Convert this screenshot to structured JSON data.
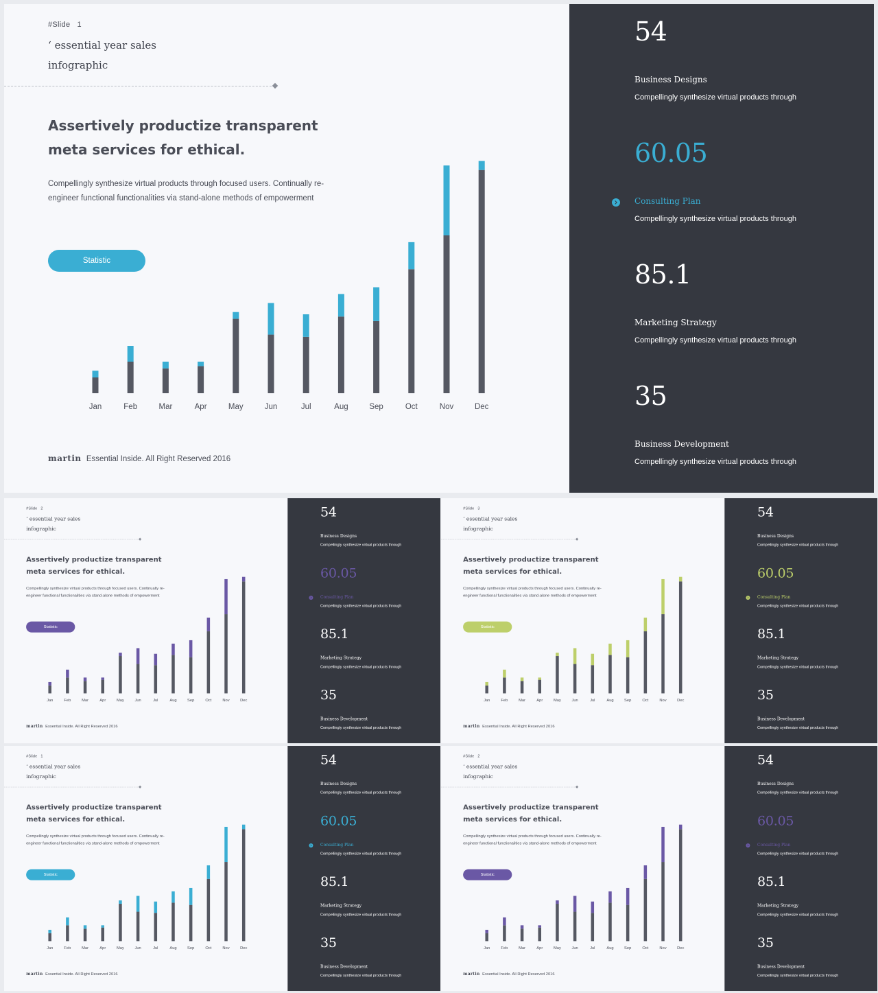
{
  "slides": [
    {
      "slide_label": "#Slide",
      "slide_number": "1",
      "accent": "#3aaed3",
      "featured": true
    },
    {
      "slide_label": "#Slide",
      "slide_number": "2",
      "accent": "#6a58a5",
      "featured": false
    },
    {
      "slide_label": "#Slide",
      "slide_number": "3",
      "accent": "#bdcf6a",
      "featured": false
    },
    {
      "slide_label": "#Slide",
      "slide_number": "1",
      "accent": "#3aaed3",
      "featured": false
    },
    {
      "slide_label": "#Slide",
      "slide_number": "2",
      "accent": "#6a58a5",
      "featured": false
    }
  ],
  "content": {
    "title_mark": "‘",
    "title": "essential year sales infographic",
    "headline": "Assertively productize transparent meta services for ethical.",
    "body": "Compellingly synthesize virtual products through focused users. Continually re-engineer functional functionalities via stand-alone methods of empowerment",
    "button_label": "Statistic",
    "footer_brand": "martin",
    "footer_text": "Essential Inside. All Right Reserved 2016"
  },
  "stats": [
    {
      "value": "54",
      "label": "Business Designs",
      "desc": "Compellingly synthesize virtual products through",
      "highlight": false
    },
    {
      "value": "60.05",
      "label": "Consulting Plan",
      "desc": "Compellingly synthesize virtual products through",
      "highlight": true
    },
    {
      "value": "85.1",
      "label": "Marketing Strategy",
      "desc": "Compellingly synthesize virtual products through",
      "highlight": false
    },
    {
      "value": "35",
      "label": "Business Development",
      "desc": "Compellingly synthesize virtual products through",
      "highlight": false
    }
  ],
  "chart_data": {
    "type": "bar",
    "stacked": true,
    "categories": [
      "Jan",
      "Feb",
      "Mar",
      "Apr",
      "May",
      "Jun",
      "Jul",
      "Aug",
      "Sep",
      "Oct",
      "Nov",
      "Dec"
    ],
    "series": [
      {
        "values": [
          7,
          14,
          11,
          12,
          33,
          26,
          25,
          34,
          32,
          55,
          70,
          99
        ],
        "color": "#555862"
      },
      {
        "values": [
          3,
          7,
          3,
          2,
          3,
          14,
          10,
          10,
          15,
          12,
          31,
          4
        ],
        "color": "accent"
      }
    ],
    "ylim": [
      0,
      105
    ],
    "grid": false,
    "legend": "none"
  }
}
